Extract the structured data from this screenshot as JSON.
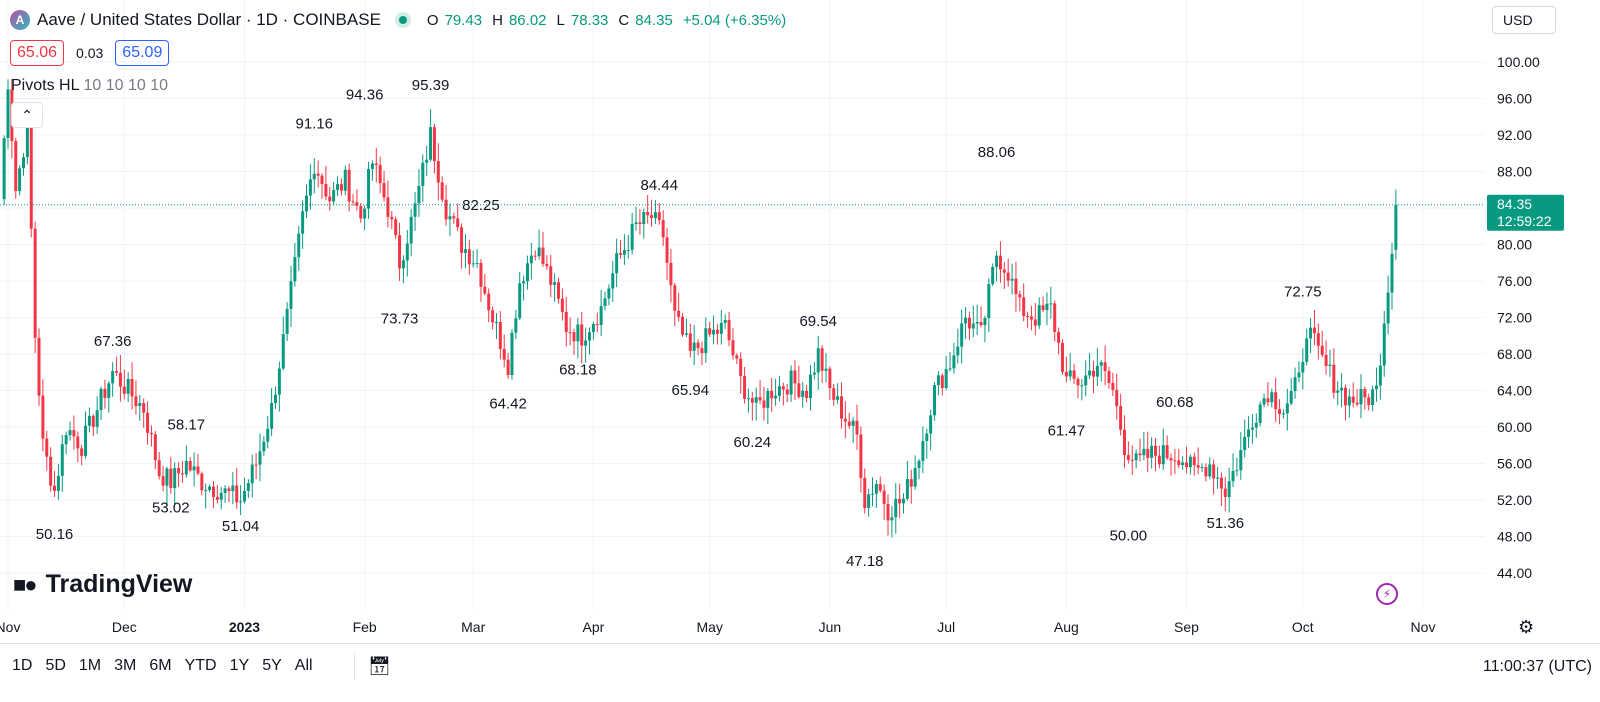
{
  "header": {
    "logo_letter": "A",
    "symbol_title": "Aave / United States Dollar · 1D · COINBASE",
    "ohlc": [
      {
        "k": "O",
        "v": "79.43"
      },
      {
        "k": "H",
        "v": "86.02"
      },
      {
        "k": "L",
        "v": "78.33"
      },
      {
        "k": "C",
        "v": "84.35"
      }
    ],
    "change": "+5.04 (+6.35%)",
    "currency": "USD"
  },
  "quote": {
    "bid": "65.06",
    "spread": "0.03",
    "ask": "65.09"
  },
  "indicator": {
    "name": "Pivots HL",
    "params": "10 10 10 10",
    "collapse_icon": "chevron-up-icon"
  },
  "price_label": {
    "price": "84.35",
    "countdown": "12:59:22"
  },
  "footer": {
    "ranges": [
      "1D",
      "5D",
      "1M",
      "3M",
      "6M",
      "YTD",
      "1Y",
      "5Y",
      "All"
    ],
    "clock": "11:00:37 (UTC)",
    "brand": "TradingView"
  },
  "colors": {
    "up": "#089981",
    "down": "#f23645",
    "grid": "#f0f3fa",
    "price_line": "#089981"
  },
  "chart_data": {
    "type": "candlestick",
    "y_axis": {
      "min": 44,
      "max": 100,
      "ticks": [
        "100.00",
        "96.00",
        "92.00",
        "88.00",
        "84.00",
        "80.00",
        "76.00",
        "72.00",
        "68.00",
        "64.00",
        "60.00",
        "56.00",
        "52.00",
        "48.00",
        "44.00"
      ]
    },
    "x_axis": {
      "labels": [
        "Nov",
        "Dec",
        "2023",
        "Feb",
        "Mar",
        "Apr",
        "May",
        "Jun",
        "Jul",
        "Aug",
        "Sep",
        "Oct",
        "Nov"
      ],
      "bold": [
        "2023"
      ]
    },
    "last_price": 84.35,
    "pivots": [
      {
        "label": "67.36",
        "date": "2022-11-28",
        "type": "high"
      },
      {
        "label": "50.16",
        "date": "2022-11-13",
        "type": "low"
      },
      {
        "label": "58.17",
        "date": "2022-12-17",
        "type": "high"
      },
      {
        "label": "53.02",
        "date": "2022-12-13",
        "type": "low"
      },
      {
        "label": "51.04",
        "date": "2022-12-31",
        "type": "low"
      },
      {
        "label": "91.16",
        "date": "2023-01-19",
        "type": "high"
      },
      {
        "label": "94.36",
        "date": "2023-02-01",
        "type": "high"
      },
      {
        "label": "95.39",
        "date": "2023-02-18",
        "type": "high"
      },
      {
        "label": "73.73",
        "date": "2023-02-10",
        "type": "low"
      },
      {
        "label": "82.25",
        "date": "2023-03-03",
        "type": "high"
      },
      {
        "label": "64.42",
        "date": "2023-03-10",
        "type": "low"
      },
      {
        "label": "68.18",
        "date": "2023-03-28",
        "type": "low"
      },
      {
        "label": "84.44",
        "date": "2023-04-18",
        "type": "high"
      },
      {
        "label": "65.94",
        "date": "2023-04-26",
        "type": "low"
      },
      {
        "label": "60.24",
        "date": "2023-05-12",
        "type": "low"
      },
      {
        "label": "69.54",
        "date": "2023-05-29",
        "type": "high"
      },
      {
        "label": "47.18",
        "date": "2023-06-10",
        "type": "low"
      },
      {
        "label": "88.06",
        "date": "2023-07-14",
        "type": "high"
      },
      {
        "label": "61.47",
        "date": "2023-08-01",
        "type": "low"
      },
      {
        "label": "50.00",
        "date": "2023-08-17",
        "type": "low"
      },
      {
        "label": "60.68",
        "date": "2023-08-29",
        "type": "high"
      },
      {
        "label": "51.36",
        "date": "2023-09-11",
        "type": "low"
      },
      {
        "label": "72.75",
        "date": "2023-10-01",
        "type": "high"
      }
    ],
    "anchors": [
      [
        "2022-10-30",
        85
      ],
      [
        "2022-11-01",
        98
      ],
      [
        "2022-11-03",
        86
      ],
      [
        "2022-11-06",
        93
      ],
      [
        "2022-11-08",
        70
      ],
      [
        "2022-11-10",
        58
      ],
      [
        "2022-11-13",
        53
      ],
      [
        "2022-11-16",
        60
      ],
      [
        "2022-11-20",
        58
      ],
      [
        "2022-11-24",
        62
      ],
      [
        "2022-11-28",
        66
      ],
      [
        "2022-12-02",
        64
      ],
      [
        "2022-12-06",
        62
      ],
      [
        "2022-12-10",
        55
      ],
      [
        "2022-12-13",
        54
      ],
      [
        "2022-12-17",
        56
      ],
      [
        "2022-12-21",
        54
      ],
      [
        "2022-12-26",
        53
      ],
      [
        "2022-12-31",
        52
      ],
      [
        "2023-01-04",
        56
      ],
      [
        "2023-01-08",
        62
      ],
      [
        "2023-01-12",
        72
      ],
      [
        "2023-01-16",
        83
      ],
      [
        "2023-01-19",
        89
      ],
      [
        "2023-01-23",
        85
      ],
      [
        "2023-01-27",
        87
      ],
      [
        "2023-01-31",
        83
      ],
      [
        "2023-02-03",
        89
      ],
      [
        "2023-02-07",
        84
      ],
      [
        "2023-02-10",
        78
      ],
      [
        "2023-02-14",
        84
      ],
      [
        "2023-02-18",
        92
      ],
      [
        "2023-02-22",
        84
      ],
      [
        "2023-02-26",
        80
      ],
      [
        "2023-03-02",
        78
      ],
      [
        "2023-03-06",
        72
      ],
      [
        "2023-03-10",
        67
      ],
      [
        "2023-03-13",
        76
      ],
      [
        "2023-03-17",
        80
      ],
      [
        "2023-03-21",
        76
      ],
      [
        "2023-03-25",
        71
      ],
      [
        "2023-03-29",
        70
      ],
      [
        "2023-04-03",
        73
      ],
      [
        "2023-04-07",
        78
      ],
      [
        "2023-04-12",
        82
      ],
      [
        "2023-04-16",
        83
      ],
      [
        "2023-04-19",
        81
      ],
      [
        "2023-04-22",
        72
      ],
      [
        "2023-04-26",
        68
      ],
      [
        "2023-05-01",
        70
      ],
      [
        "2023-05-05",
        71
      ],
      [
        "2023-05-09",
        65
      ],
      [
        "2023-05-13",
        62
      ],
      [
        "2023-05-17",
        64
      ],
      [
        "2023-05-22",
        65
      ],
      [
        "2023-05-26",
        64
      ],
      [
        "2023-05-29",
        68
      ],
      [
        "2023-06-01",
        64
      ],
      [
        "2023-06-05",
        61
      ],
      [
        "2023-06-08",
        59
      ],
      [
        "2023-06-10",
        52
      ],
      [
        "2023-06-13",
        54
      ],
      [
        "2023-06-16",
        51
      ],
      [
        "2023-06-20",
        52
      ],
      [
        "2023-06-24",
        57
      ],
      [
        "2023-06-28",
        64
      ],
      [
        "2023-07-02",
        67
      ],
      [
        "2023-07-06",
        72
      ],
      [
        "2023-07-10",
        70
      ],
      [
        "2023-07-14",
        79
      ],
      [
        "2023-07-17",
        77
      ],
      [
        "2023-07-20",
        73
      ],
      [
        "2023-07-24",
        72
      ],
      [
        "2023-07-28",
        73
      ],
      [
        "2023-08-01",
        65
      ],
      [
        "2023-08-05",
        65
      ],
      [
        "2023-08-09",
        67
      ],
      [
        "2023-08-13",
        64
      ],
      [
        "2023-08-16",
        58
      ],
      [
        "2023-08-19",
        56
      ],
      [
        "2023-08-23",
        57
      ],
      [
        "2023-08-27",
        57
      ],
      [
        "2023-08-30",
        57
      ],
      [
        "2023-09-03",
        55
      ],
      [
        "2023-09-07",
        56
      ],
      [
        "2023-09-11",
        53
      ],
      [
        "2023-09-14",
        56
      ],
      [
        "2023-09-18",
        61
      ],
      [
        "2023-09-22",
        64
      ],
      [
        "2023-09-26",
        62
      ],
      [
        "2023-09-30",
        65
      ],
      [
        "2023-10-02",
        71
      ],
      [
        "2023-10-05",
        68
      ],
      [
        "2023-10-09",
        65
      ],
      [
        "2023-10-13",
        63
      ],
      [
        "2023-10-17",
        63
      ],
      [
        "2023-10-20",
        64
      ],
      [
        "2023-10-22",
        72
      ],
      [
        "2023-10-24",
        79.43
      ],
      [
        "2023-10-25",
        84.35
      ]
    ]
  }
}
